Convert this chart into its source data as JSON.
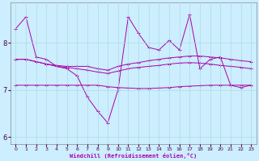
{
  "xlabel": "Windchill (Refroidissement éolien,°C)",
  "background_color": "#cceeff",
  "grid_color": "#aadddd",
  "line_color": "#aa00aa",
  "xlim": [
    -0.5,
    23.5
  ],
  "ylim": [
    5.85,
    8.85
  ],
  "yticks": [
    6,
    7,
    8
  ],
  "xticks": [
    0,
    1,
    2,
    3,
    4,
    5,
    6,
    7,
    8,
    9,
    10,
    11,
    12,
    13,
    14,
    15,
    16,
    17,
    18,
    19,
    20,
    21,
    22,
    23
  ],
  "series": [
    [
      8.3,
      8.55,
      7.7,
      7.65,
      7.5,
      7.45,
      7.3,
      6.85,
      6.55,
      6.3,
      7.0,
      8.55,
      8.2,
      7.9,
      7.85,
      8.05,
      7.85,
      8.6,
      7.45,
      7.65,
      7.7,
      7.1,
      7.05,
      7.1
    ],
    [
      7.65,
      7.65,
      7.6,
      7.55,
      7.52,
      7.5,
      7.5,
      7.5,
      7.45,
      7.42,
      7.5,
      7.55,
      7.58,
      7.62,
      7.65,
      7.68,
      7.7,
      7.72,
      7.72,
      7.7,
      7.68,
      7.65,
      7.62,
      7.6
    ],
    [
      7.65,
      7.65,
      7.6,
      7.55,
      7.5,
      7.48,
      7.45,
      7.42,
      7.38,
      7.35,
      7.4,
      7.45,
      7.48,
      7.5,
      7.52,
      7.55,
      7.57,
      7.58,
      7.57,
      7.55,
      7.52,
      7.5,
      7.48,
      7.45
    ],
    [
      7.1,
      7.1,
      7.1,
      7.1,
      7.1,
      7.1,
      7.1,
      7.1,
      7.1,
      7.07,
      7.05,
      7.04,
      7.03,
      7.03,
      7.04,
      7.05,
      7.07,
      7.08,
      7.09,
      7.1,
      7.1,
      7.1,
      7.1,
      7.1
    ]
  ]
}
